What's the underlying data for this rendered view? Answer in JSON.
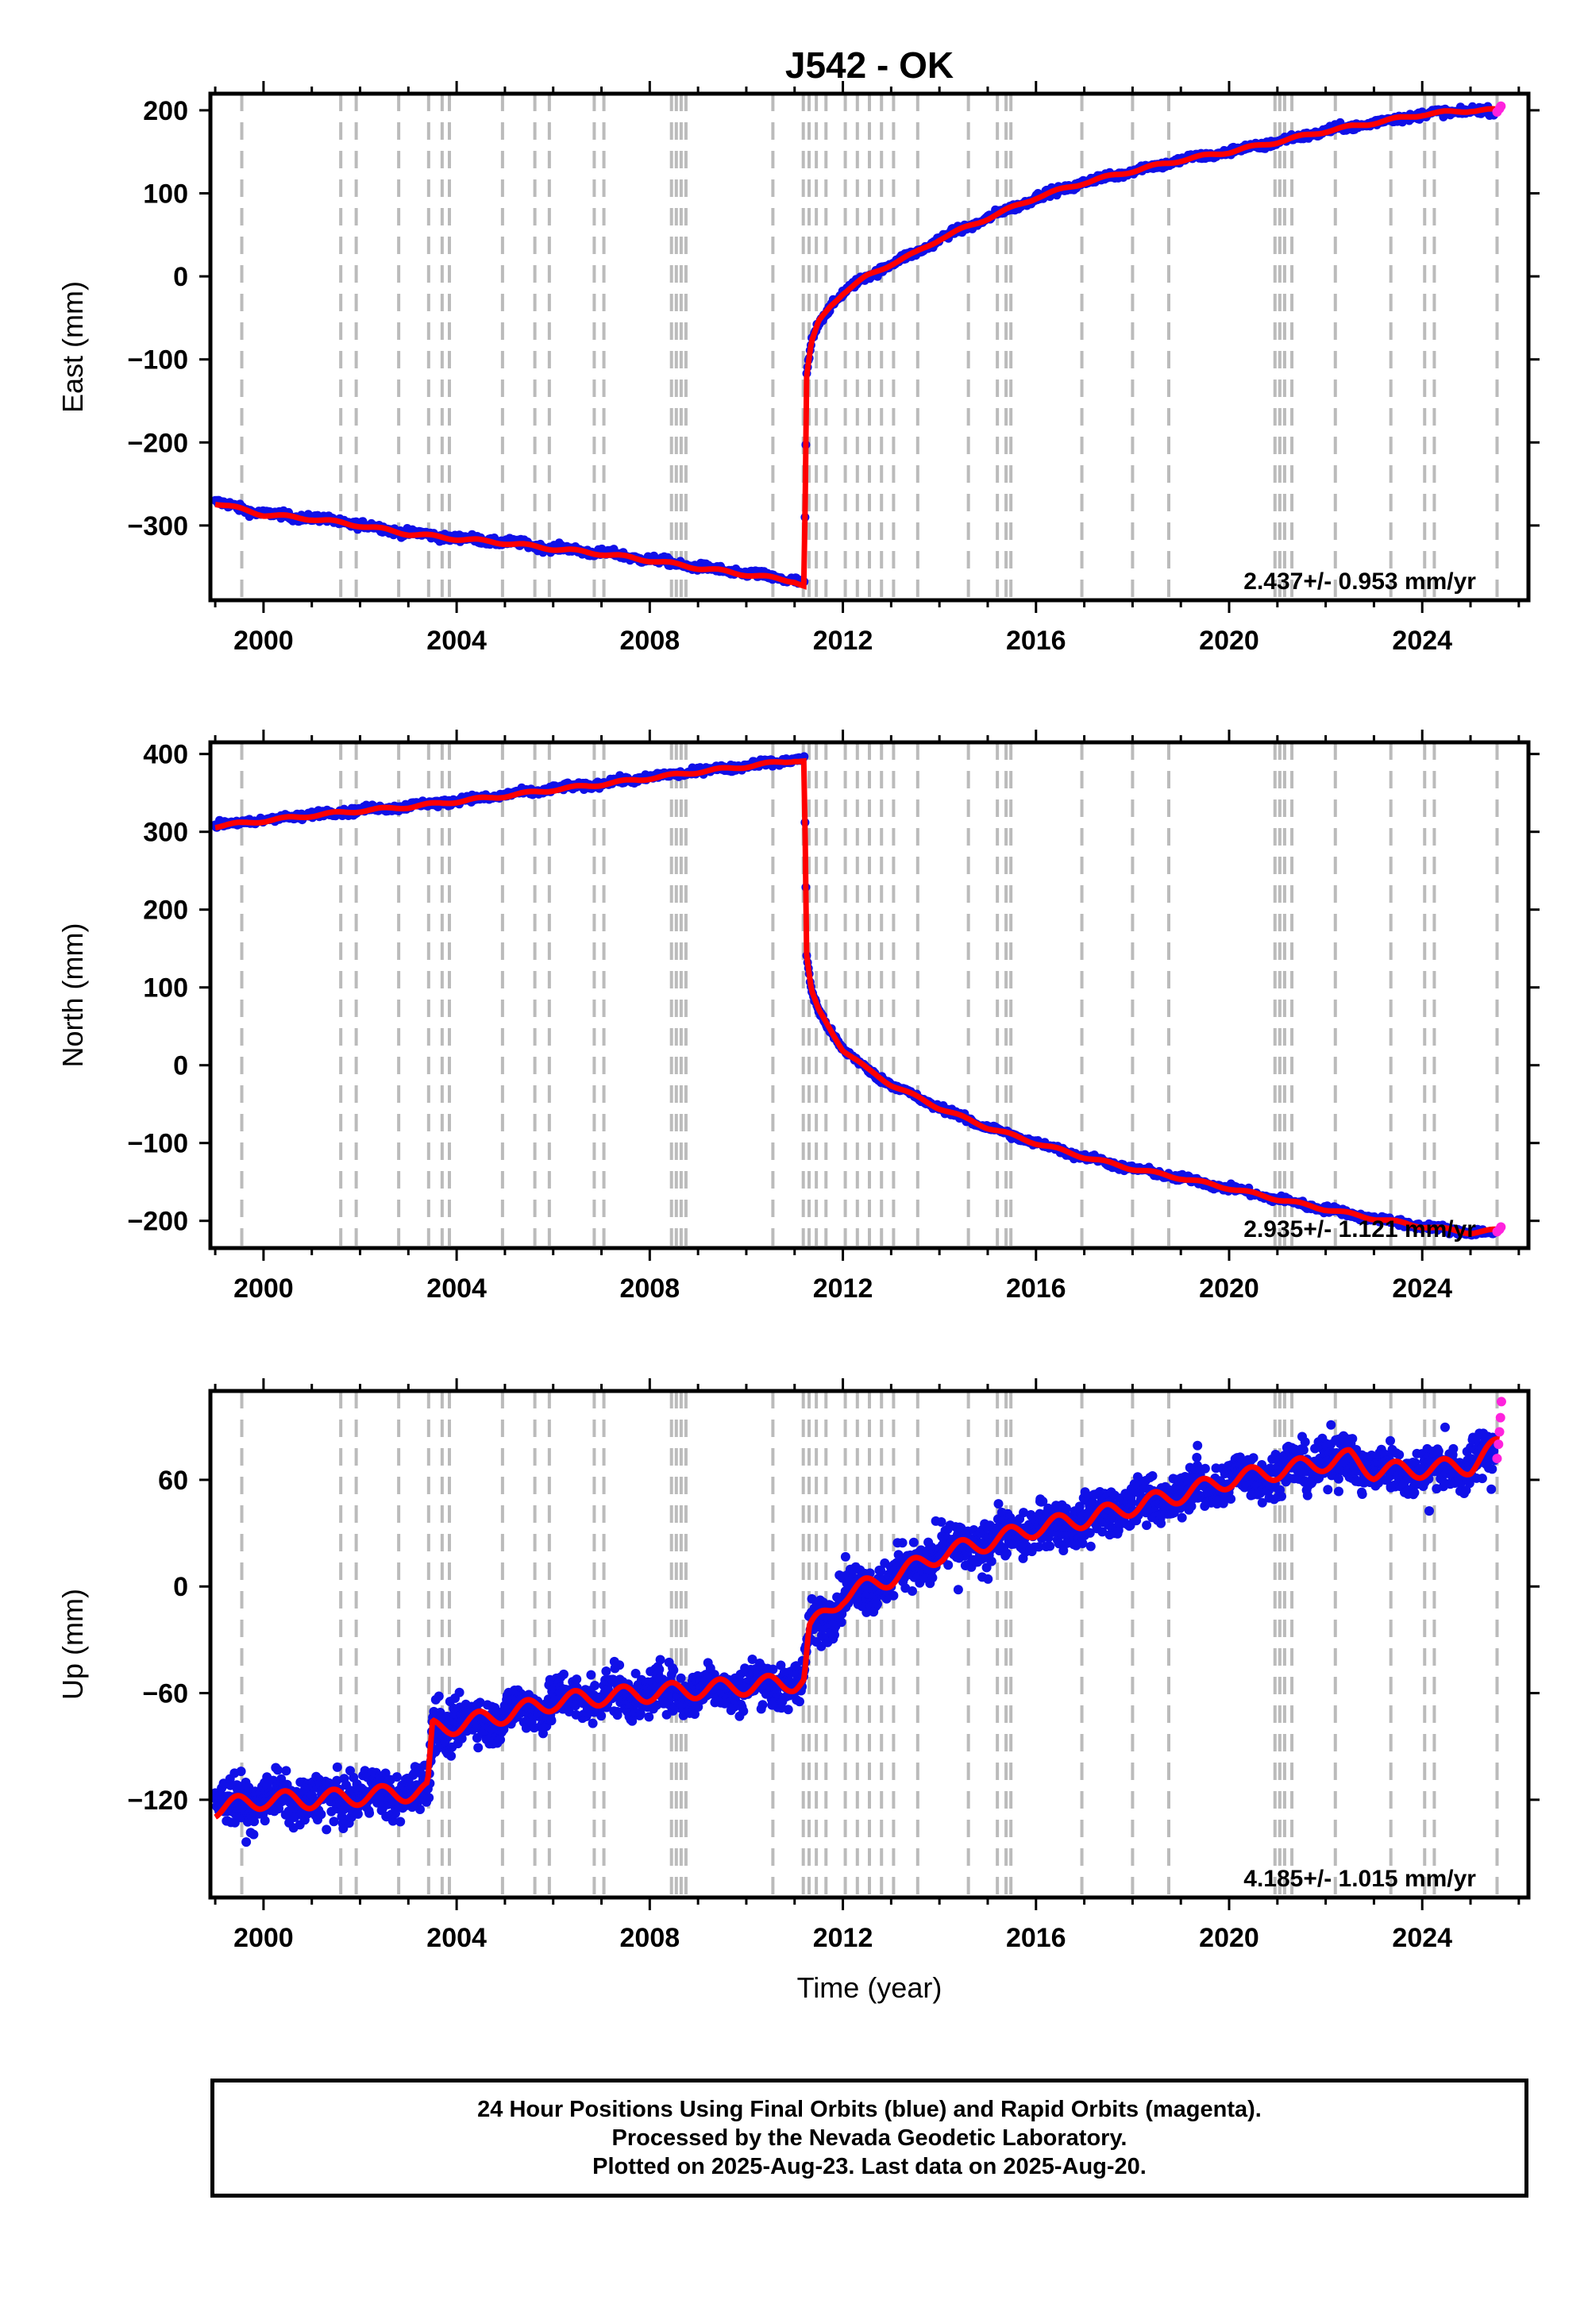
{
  "title": "J542 - OK",
  "x_axis_label": "Time (year)",
  "footer": {
    "line1": "24 Hour Positions Using Final Orbits (blue) and Rapid Orbits (magenta).",
    "line2": "Processed by the Nevada Geodetic Laboratory.",
    "line3": "Plotted on 2025-Aug-23. Last data on 2025-Aug-20."
  },
  "colors": {
    "final_orbits": "#1010e8",
    "rapid_orbits": "#ff22dd",
    "model": "#ff0000",
    "event_lines": "#bbbbbb"
  },
  "event_years": [
    1999.55,
    2001.6,
    2001.92,
    2002.8,
    2003.42,
    2003.7,
    2003.85,
    2004.95,
    2005.62,
    2005.92,
    2006.85,
    2007.05,
    2008.45,
    2008.55,
    2008.65,
    2008.75,
    2010.55,
    2011.18,
    2011.3,
    2011.45,
    2011.65,
    2012.05,
    2012.3,
    2012.55,
    2012.8,
    2013.05,
    2013.55,
    2014.6,
    2015.2,
    2015.38,
    2015.48,
    2016.95,
    2018.0,
    2018.75,
    2020.95,
    2021.05,
    2021.15,
    2021.3,
    2022.2,
    2023.35,
    2024.05,
    2024.25,
    2025.55
  ],
  "chart_data": [
    {
      "type": "scatter",
      "component": "East",
      "ylabel": "East (mm)",
      "xlim": [
        1998.9,
        2026.2
      ],
      "ylim": [
        -390,
        220
      ],
      "xticks": [
        "2000",
        "2004",
        "2008",
        "2012",
        "2016",
        "2020",
        "2024"
      ],
      "yticks": [
        "200",
        "100",
        "0",
        "−100",
        "−200",
        "−300"
      ],
      "ytick_values": [
        200,
        100,
        0,
        -100,
        -200,
        -300
      ],
      "rate_text": "2.437+/- 0.953 mm/yr",
      "series": [
        {
          "name": "Final Orbits",
          "x": [
            1999.0,
            2000.0,
            2001.0,
            2002.0,
            2003.0,
            2004.0,
            2005.0,
            2006.0,
            2007.0,
            2008.0,
            2009.0,
            2010.0,
            2011.0,
            2011.2,
            2011.25,
            2011.35,
            2011.5,
            2011.75,
            2012.0,
            2012.5,
            2013.0,
            2013.5,
            2014.0,
            2015.0,
            2016.0,
            2017.0,
            2018.0,
            2019.0,
            2020.0,
            2021.0,
            2022.0,
            2023.0,
            2024.0,
            2025.0,
            2025.5
          ],
          "y": [
            -272,
            -286,
            -291,
            -299,
            -309,
            -315,
            -320,
            -327,
            -333,
            -341,
            -350,
            -358,
            -366,
            -372,
            -120,
            -80,
            -55,
            -35,
            -20,
            0,
            15,
            28,
            45,
            70,
            95,
            113,
            127,
            140,
            150,
            162,
            175,
            185,
            195,
            200,
            198
          ]
        },
        {
          "name": "Rapid Orbits",
          "x": [
            2025.55,
            2025.6,
            2025.63
          ],
          "y": [
            198,
            202,
            205
          ]
        },
        {
          "name": "Model",
          "x": [
            1999.0,
            2000.0,
            2001.0,
            2002.0,
            2003.0,
            2004.0,
            2005.0,
            2006.0,
            2007.0,
            2008.0,
            2009.0,
            2010.0,
            2011.0,
            2011.2,
            2011.25,
            2011.35,
            2011.5,
            2011.75,
            2012.0,
            2012.5,
            2013.0,
            2013.5,
            2014.0,
            2015.0,
            2016.0,
            2017.0,
            2018.0,
            2019.0,
            2020.0,
            2021.0,
            2022.0,
            2023.0,
            2024.0,
            2025.0,
            2025.6
          ],
          "y": [
            -273,
            -287,
            -292,
            -300,
            -310,
            -316,
            -321,
            -328,
            -334,
            -342,
            -351,
            -359,
            -367,
            -373,
            -120,
            -80,
            -55,
            -35,
            -20,
            0,
            15,
            28,
            45,
            70,
            95,
            113,
            127,
            140,
            150,
            162,
            175,
            185,
            195,
            200,
            200
          ]
        }
      ]
    },
    {
      "type": "scatter",
      "component": "North",
      "ylabel": "North (mm)",
      "xlim": [
        1998.9,
        2026.2
      ],
      "ylim": [
        -235,
        415
      ],
      "xticks": [
        "2000",
        "2004",
        "2008",
        "2012",
        "2016",
        "2020",
        "2024"
      ],
      "yticks": [
        "400",
        "300",
        "200",
        "100",
        "0",
        "−100",
        "−200"
      ],
      "ytick_values": [
        400,
        300,
        200,
        100,
        0,
        -100,
        -200
      ],
      "rate_text": "2.935+/- 1.121 mm/yr",
      "series": [
        {
          "name": "Final Orbits",
          "x": [
            1999.0,
            2000.0,
            2001.0,
            2002.0,
            2003.0,
            2004.0,
            2005.0,
            2006.0,
            2007.0,
            2008.0,
            2009.0,
            2010.0,
            2011.0,
            2011.2,
            2011.25,
            2011.35,
            2011.5,
            2011.75,
            2012.0,
            2012.5,
            2013.0,
            2013.5,
            2014.0,
            2015.0,
            2016.0,
            2017.0,
            2018.0,
            2019.0,
            2020.0,
            2021.0,
            2022.0,
            2023.0,
            2024.0,
            2025.0,
            2025.5
          ],
          "y": [
            308,
            315,
            322,
            328,
            333,
            340,
            347,
            355,
            362,
            370,
            378,
            385,
            393,
            392,
            140,
            95,
            70,
            45,
            20,
            -5,
            -25,
            -40,
            -55,
            -80,
            -100,
            -118,
            -133,
            -145,
            -158,
            -172,
            -185,
            -197,
            -207,
            -215,
            -216
          ]
        },
        {
          "name": "Rapid Orbits",
          "x": [
            2025.55,
            2025.6,
            2025.63
          ],
          "y": [
            -214,
            -211,
            -208
          ]
        },
        {
          "name": "Model",
          "x": [
            1999.0,
            2000.0,
            2001.0,
            2002.0,
            2003.0,
            2004.0,
            2005.0,
            2006.0,
            2007.0,
            2008.0,
            2009.0,
            2010.0,
            2011.0,
            2011.2,
            2011.25,
            2011.35,
            2011.5,
            2011.75,
            2012.0,
            2012.5,
            2013.0,
            2013.5,
            2014.0,
            2015.0,
            2016.0,
            2017.0,
            2018.0,
            2019.0,
            2020.0,
            2021.0,
            2022.0,
            2023.0,
            2024.0,
            2025.0,
            2025.6
          ],
          "y": [
            307,
            314,
            321,
            327,
            332,
            339,
            346,
            354,
            361,
            369,
            377,
            384,
            392,
            391,
            140,
            95,
            70,
            45,
            20,
            -5,
            -25,
            -40,
            -55,
            -80,
            -100,
            -118,
            -133,
            -145,
            -158,
            -172,
            -185,
            -197,
            -207,
            -215,
            -212
          ]
        }
      ]
    },
    {
      "type": "scatter",
      "component": "Up",
      "ylabel": "Up (mm)",
      "xlim": [
        1998.9,
        2026.2
      ],
      "ylim": [
        -175,
        110
      ],
      "xticks": [
        "2000",
        "2004",
        "2008",
        "2012",
        "2016",
        "2020",
        "2024"
      ],
      "yticks": [
        "60",
        "0",
        "−60",
        "−120"
      ],
      "ytick_values": [
        60,
        0,
        -60,
        -120
      ],
      "rate_text": "4.185+/- 1.015 mm/yr",
      "series": [
        {
          "name": "Final Orbits",
          "x": [
            1999.0,
            2000.0,
            2001.0,
            2002.0,
            2003.0,
            2003.4,
            2003.5,
            2004.0,
            2005.0,
            2006.0,
            2007.0,
            2008.0,
            2009.0,
            2010.0,
            2011.0,
            2011.2,
            2011.3,
            2012.0,
            2013.0,
            2014.0,
            2015.0,
            2016.0,
            2017.0,
            2018.0,
            2019.0,
            2020.0,
            2021.0,
            2022.0,
            2022.5,
            2023.0,
            2024.0,
            2025.0,
            2025.5
          ],
          "y": [
            -125,
            -120,
            -120,
            -118,
            -116,
            -115,
            -80,
            -78,
            -72,
            -65,
            -62,
            -60,
            -58,
            -56,
            -54,
            -52,
            -25,
            -5,
            5,
            18,
            25,
            33,
            38,
            45,
            52,
            60,
            65,
            70,
            72,
            65,
            66,
            68,
            75
          ]
        },
        {
          "name": "Rapid Orbits",
          "x": [
            2025.55,
            2025.58,
            2025.6,
            2025.62,
            2025.64
          ],
          "y": [
            72,
            80,
            87,
            95,
            104
          ]
        },
        {
          "name": "Model",
          "x": [
            1999.0,
            2000.0,
            2001.0,
            2002.0,
            2003.0,
            2003.4,
            2003.5,
            2004.0,
            2005.0,
            2006.0,
            2007.0,
            2008.0,
            2009.0,
            2010.0,
            2011.0,
            2011.2,
            2011.3,
            2012.0,
            2013.0,
            2014.0,
            2015.0,
            2016.0,
            2017.0,
            2018.0,
            2019.0,
            2020.0,
            2021.0,
            2022.0,
            2022.5,
            2023.0,
            2024.0,
            2025.0,
            2025.6
          ],
          "y": [
            -125,
            -120,
            -120,
            -118,
            -116,
            -115,
            -80,
            -78,
            -72,
            -65,
            -62,
            -60,
            -58,
            -56,
            -54,
            -52,
            -25,
            -5,
            5,
            18,
            25,
            33,
            38,
            45,
            52,
            60,
            65,
            70,
            72,
            65,
            66,
            68,
            80
          ]
        }
      ]
    }
  ]
}
